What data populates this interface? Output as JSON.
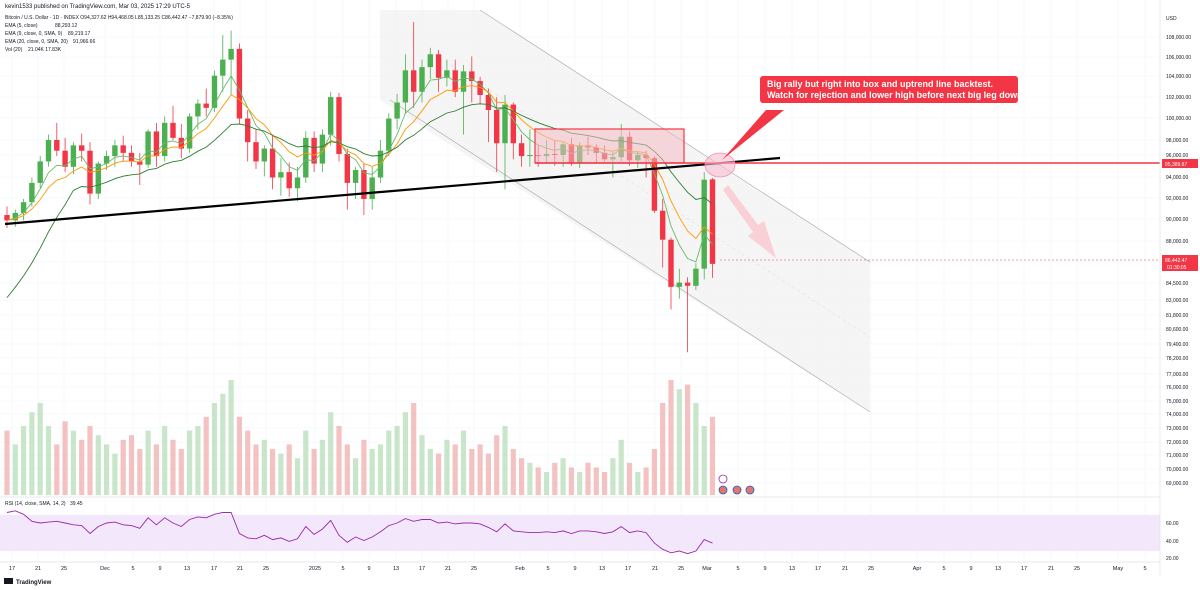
{
  "header": {
    "publisher": "kevin1533 published on TradingView.com, Mar 03, 2025 17:29 UTC-5",
    "symbol_line": "Bitcoin / U.S. Dollar · 1D · INDEX  O94,327.62  H94,468.05  L85,133.25  C86,442.47  −7,879.90 (−8.35%)"
  },
  "indicators": [
    {
      "label": "EMA (5, close)",
      "value": "88,293.12",
      "color": "#4caf50"
    },
    {
      "label": "EMA (9, close, 0, SMA, 9)",
      "value": "89,219.17",
      "color": "#ff9800"
    },
    {
      "label": "EMA (20, close, 0, SMA, 20)",
      "value": "91,966.66",
      "color": "#43a047"
    },
    {
      "label": "Vol (20)",
      "value": "21.04K  17.83K",
      "color": "#2962ff"
    }
  ],
  "rsi_label": "RSI (14, close, SMA, 14, 2)",
  "rsi_value": "39.45",
  "annotation": {
    "line1": "Big rally but right into box and uptrend line backtest.",
    "line2": "Watch for rejection and lower high before next big leg down."
  },
  "price_tags": {
    "level": "95,389.87",
    "last": "86,442.47",
    "countdown": "01:30:05"
  },
  "footer": {
    "brand": "TradingView"
  },
  "chart_data": {
    "type": "candlestick",
    "currency": "USD",
    "price_axis_ticks": [
      "108,000.00",
      "106,000.00",
      "104,000.00",
      "102,000.00",
      "100,000.00",
      "98,000.00",
      "96,000.00",
      "94,000.00",
      "92,000.00",
      "90,000.00",
      "88,000.00",
      "86,000.00",
      "84,500.00",
      "83,000.00",
      "81,800.00",
      "80,600.00",
      "79,400.00",
      "78,200.00",
      "77,000.00",
      "76,000.00",
      "75,000.00",
      "74,000.00",
      "73,000.00",
      "72,000.00",
      "71,000.00",
      "70,000.00",
      "69,000.00"
    ],
    "rsi_axis_ticks": [
      "60.00",
      "40.00",
      "20.00"
    ],
    "x_ticks": [
      "17",
      "21",
      "25",
      "Dec",
      "5",
      "9",
      "13",
      "17",
      "21",
      "25",
      "2025",
      "5",
      "9",
      "13",
      "17",
      "21",
      "25",
      "Feb",
      "5",
      "9",
      "13",
      "17",
      "21",
      "25",
      "Mar",
      "5",
      "9",
      "13",
      "17",
      "21",
      "25",
      "Apr",
      "5",
      "9",
      "13",
      "17",
      "21",
      "25",
      "May",
      "5"
    ],
    "candles": [
      {
        "o": 91000,
        "h": 91800,
        "l": 89800,
        "c": 90500
      },
      {
        "o": 90500,
        "h": 91500,
        "l": 89900,
        "c": 91200
      },
      {
        "o": 91200,
        "h": 92500,
        "l": 90500,
        "c": 92200
      },
      {
        "o": 92200,
        "h": 94500,
        "l": 91800,
        "c": 94000
      },
      {
        "o": 94000,
        "h": 96500,
        "l": 93500,
        "c": 96000
      },
      {
        "o": 96000,
        "h": 98500,
        "l": 95500,
        "c": 98000
      },
      {
        "o": 98000,
        "h": 99600,
        "l": 96500,
        "c": 97000
      },
      {
        "o": 97000,
        "h": 98200,
        "l": 95000,
        "c": 95500
      },
      {
        "o": 95500,
        "h": 97800,
        "l": 94800,
        "c": 97500
      },
      {
        "o": 97500,
        "h": 98600,
        "l": 96000,
        "c": 97000
      },
      {
        "o": 97000,
        "h": 97800,
        "l": 92000,
        "c": 93000
      },
      {
        "o": 93000,
        "h": 96000,
        "l": 92500,
        "c": 95800
      },
      {
        "o": 95800,
        "h": 97000,
        "l": 95200,
        "c": 96500
      },
      {
        "o": 96500,
        "h": 98000,
        "l": 95500,
        "c": 97500
      },
      {
        "o": 97500,
        "h": 98400,
        "l": 96000,
        "c": 96800
      },
      {
        "o": 96800,
        "h": 97500,
        "l": 95500,
        "c": 96000
      },
      {
        "o": 96000,
        "h": 96800,
        "l": 93800,
        "c": 95700
      },
      {
        "o": 95700,
        "h": 99000,
        "l": 95400,
        "c": 98800
      },
      {
        "o": 98800,
        "h": 99600,
        "l": 95500,
        "c": 96500
      },
      {
        "o": 96500,
        "h": 100200,
        "l": 96000,
        "c": 99600
      },
      {
        "o": 99600,
        "h": 101200,
        "l": 98000,
        "c": 98200
      },
      {
        "o": 98200,
        "h": 99500,
        "l": 96300,
        "c": 97200
      },
      {
        "o": 97200,
        "h": 100500,
        "l": 96800,
        "c": 100200
      },
      {
        "o": 100200,
        "h": 101800,
        "l": 99000,
        "c": 101400
      },
      {
        "o": 101400,
        "h": 102800,
        "l": 100200,
        "c": 101000
      },
      {
        "o": 101000,
        "h": 104500,
        "l": 100600,
        "c": 104000
      },
      {
        "o": 104000,
        "h": 107800,
        "l": 102500,
        "c": 105500
      },
      {
        "o": 105500,
        "h": 108200,
        "l": 102200,
        "c": 106500
      },
      {
        "o": 106500,
        "h": 107000,
        "l": 99500,
        "c": 100000
      },
      {
        "o": 100000,
        "h": 100800,
        "l": 96000,
        "c": 97800
      },
      {
        "o": 97800,
        "h": 99000,
        "l": 95300,
        "c": 96000
      },
      {
        "o": 96000,
        "h": 97500,
        "l": 94600,
        "c": 97200
      },
      {
        "o": 97200,
        "h": 98400,
        "l": 93400,
        "c": 94500
      },
      {
        "o": 94500,
        "h": 96300,
        "l": 92800,
        "c": 95000
      },
      {
        "o": 95000,
        "h": 95900,
        "l": 92700,
        "c": 93500
      },
      {
        "o": 93500,
        "h": 95500,
        "l": 92300,
        "c": 94500
      },
      {
        "o": 94500,
        "h": 98800,
        "l": 94000,
        "c": 98200
      },
      {
        "o": 98200,
        "h": 98800,
        "l": 95000,
        "c": 95800
      },
      {
        "o": 95800,
        "h": 99000,
        "l": 95000,
        "c": 98500
      },
      {
        "o": 98500,
        "h": 102500,
        "l": 97500,
        "c": 102000
      },
      {
        "o": 102000,
        "h": 102400,
        "l": 96000,
        "c": 96700
      },
      {
        "o": 96700,
        "h": 97200,
        "l": 91500,
        "c": 94000
      },
      {
        "o": 94000,
        "h": 95500,
        "l": 92500,
        "c": 95200
      },
      {
        "o": 95200,
        "h": 95800,
        "l": 91000,
        "c": 92500
      },
      {
        "o": 92500,
        "h": 95500,
        "l": 91500,
        "c": 94500
      },
      {
        "o": 94500,
        "h": 98000,
        "l": 94000,
        "c": 97000
      },
      {
        "o": 97000,
        "h": 100500,
        "l": 96500,
        "c": 100000
      },
      {
        "o": 100000,
        "h": 102300,
        "l": 99000,
        "c": 101500
      },
      {
        "o": 101500,
        "h": 106000,
        "l": 100500,
        "c": 104500
      },
      {
        "o": 104500,
        "h": 109000,
        "l": 101000,
        "c": 102500
      },
      {
        "o": 102500,
        "h": 105500,
        "l": 101500,
        "c": 104800
      },
      {
        "o": 104800,
        "h": 106600,
        "l": 103700,
        "c": 106000
      },
      {
        "o": 106000,
        "h": 106400,
        "l": 102500,
        "c": 103800
      },
      {
        "o": 103800,
        "h": 105500,
        "l": 103000,
        "c": 104500
      },
      {
        "o": 104500,
        "h": 105500,
        "l": 102000,
        "c": 102500
      },
      {
        "o": 102500,
        "h": 105000,
        "l": 98500,
        "c": 104400
      },
      {
        "o": 104400,
        "h": 105800,
        "l": 101500,
        "c": 103500
      },
      {
        "o": 103500,
        "h": 103900,
        "l": 101300,
        "c": 102200
      },
      {
        "o": 102200,
        "h": 102800,
        "l": 97800,
        "c": 100800
      },
      {
        "o": 100800,
        "h": 102000,
        "l": 95000,
        "c": 97700
      },
      {
        "o": 97700,
        "h": 102200,
        "l": 93400,
        "c": 101300
      },
      {
        "o": 101300,
        "h": 101500,
        "l": 96200,
        "c": 97700
      },
      {
        "o": 97700,
        "h": 98500,
        "l": 95500,
        "c": 96500
      },
      {
        "o": 96500,
        "h": 99000,
        "l": 95500,
        "c": 96600
      },
      {
        "o": 96600,
        "h": 97500,
        "l": 95500,
        "c": 96500
      },
      {
        "o": 96500,
        "h": 98000,
        "l": 95800,
        "c": 96700
      },
      {
        "o": 96700,
        "h": 98000,
        "l": 95600,
        "c": 96600
      },
      {
        "o": 96600,
        "h": 97800,
        "l": 95500,
        "c": 97600
      },
      {
        "o": 97600,
        "h": 98200,
        "l": 95600,
        "c": 95800
      },
      {
        "o": 95800,
        "h": 97800,
        "l": 95400,
        "c": 97500
      },
      {
        "o": 97500,
        "h": 98300,
        "l": 96600,
        "c": 97300
      },
      {
        "o": 97300,
        "h": 97600,
        "l": 95800,
        "c": 96800
      },
      {
        "o": 96800,
        "h": 97500,
        "l": 96000,
        "c": 96200
      },
      {
        "o": 96200,
        "h": 97000,
        "l": 94500,
        "c": 96400
      },
      {
        "o": 96400,
        "h": 99500,
        "l": 96000,
        "c": 98300
      },
      {
        "o": 98300,
        "h": 98800,
        "l": 95600,
        "c": 96100
      },
      {
        "o": 96100,
        "h": 96900,
        "l": 95400,
        "c": 96600
      },
      {
        "o": 96600,
        "h": 97000,
        "l": 94500,
        "c": 96300
      },
      {
        "o": 96300,
        "h": 96500,
        "l": 91200,
        "c": 91400
      },
      {
        "o": 91400,
        "h": 92500,
        "l": 86100,
        "c": 88700
      },
      {
        "o": 88700,
        "h": 88900,
        "l": 82200,
        "c": 84300
      },
      {
        "o": 84300,
        "h": 86000,
        "l": 83200,
        "c": 84700
      },
      {
        "o": 84700,
        "h": 85200,
        "l": 78200,
        "c": 84400
      },
      {
        "o": 84400,
        "h": 86500,
        "l": 84000,
        "c": 86000
      },
      {
        "o": 86000,
        "h": 95000,
        "l": 85000,
        "c": 94300
      },
      {
        "o": 94327.62,
        "h": 94468.05,
        "l": 85133.25,
        "c": 86442.47
      }
    ],
    "volumes": [
      28,
      22,
      30,
      36,
      40,
      30,
      22,
      32,
      28,
      24,
      30,
      26,
      22,
      18,
      24,
      26,
      20,
      28,
      22,
      30,
      24,
      20,
      28,
      30,
      34,
      40,
      44,
      50,
      34,
      28,
      22,
      24,
      20,
      18,
      22,
      16,
      28,
      20,
      24,
      36,
      30,
      22,
      16,
      24,
      20,
      22,
      28,
      30,
      36,
      40,
      26,
      20,
      18,
      24,
      22,
      28,
      20,
      22,
      18,
      26,
      30,
      20,
      16,
      14,
      12,
      10,
      14,
      16,
      12,
      10,
      14,
      12,
      10,
      16,
      24,
      14,
      10,
      12,
      20,
      40,
      50,
      46,
      48,
      40,
      30,
      34
    ],
    "rsi": [
      72,
      74,
      70,
      62,
      60,
      61,
      62,
      60,
      58,
      57,
      48,
      56,
      60,
      61,
      58,
      57,
      54,
      66,
      58,
      66,
      60,
      56,
      64,
      67,
      66,
      70,
      72,
      72,
      48,
      43,
      42,
      46,
      41,
      43,
      39,
      42,
      56,
      47,
      53,
      63,
      46,
      38,
      44,
      40,
      44,
      50,
      57,
      60,
      65,
      62,
      64,
      64,
      60,
      61,
      59,
      60,
      60,
      59,
      55,
      50,
      59,
      51,
      50,
      49,
      49,
      50,
      49,
      51,
      48,
      51,
      51,
      50,
      48,
      50,
      56,
      49,
      51,
      49,
      37,
      30,
      26,
      28,
      25,
      28,
      41,
      37
    ],
    "levels": [
      {
        "label": "95,389.87",
        "value": 95389.87
      }
    ],
    "last_price": 86442.47
  }
}
